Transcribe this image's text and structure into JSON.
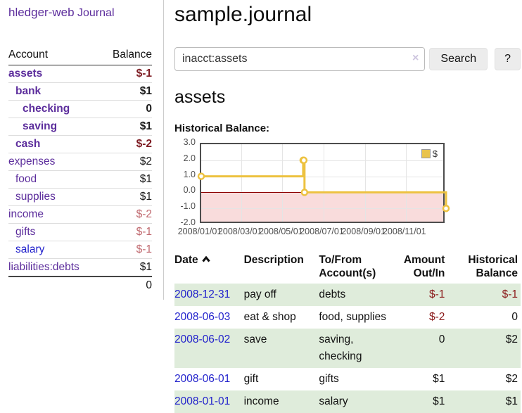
{
  "app": {
    "title": "hledger-web",
    "nav_journal": "Journal"
  },
  "sidebar": {
    "header": {
      "account": "Account",
      "balance": "Balance"
    },
    "accounts": [
      {
        "name": "assets",
        "indent": 1,
        "balance": "$-1",
        "bold": true,
        "neg": "strong"
      },
      {
        "name": "bank",
        "indent": 2,
        "balance": "$1",
        "bold": true,
        "neg": "none"
      },
      {
        "name": "checking",
        "indent": 3,
        "balance": "0",
        "bold": true,
        "neg": "none"
      },
      {
        "name": "saving",
        "indent": 3,
        "balance": "$1",
        "bold": true,
        "neg": "none"
      },
      {
        "name": "cash",
        "indent": 2,
        "balance": "$-2",
        "bold": true,
        "neg": "strong"
      },
      {
        "name": "expenses",
        "indent": 1,
        "balance": "$2",
        "bold": false,
        "neg": "none"
      },
      {
        "name": "food",
        "indent": 2,
        "balance": "$1",
        "bold": false,
        "neg": "none"
      },
      {
        "name": "supplies",
        "indent": 2,
        "balance": "$1",
        "bold": false,
        "neg": "none"
      },
      {
        "name": "income",
        "indent": 1,
        "balance": "$-2",
        "bold": false,
        "neg": "soft"
      },
      {
        "name": "gifts",
        "indent": 2,
        "balance": "$-1",
        "bold": false,
        "neg": "soft"
      },
      {
        "name": "salary",
        "indent": 2,
        "balance": "$-1",
        "bold": false,
        "neg": "soft",
        "link": "blue"
      },
      {
        "name": "liabilities:debts",
        "indent": 1,
        "balance": "$1",
        "bold": false,
        "neg": "none",
        "last": true
      }
    ],
    "total": "0"
  },
  "header": {
    "title": "sample.journal"
  },
  "search": {
    "query": "inacct:assets",
    "clear_icon": "×",
    "button_label": "Search",
    "help_label": "?"
  },
  "account_page": {
    "heading": "assets",
    "chart_label": "Historical Balance:"
  },
  "chart_data": {
    "type": "line",
    "title": "Historical Balance",
    "series": [
      {
        "name": "$",
        "color": "#edc240",
        "points": [
          [
            "2008-01-01",
            1
          ],
          [
            "2008-06-01",
            2
          ],
          [
            "2008-06-02",
            2
          ],
          [
            "2008-06-03",
            0
          ],
          [
            "2008-12-31",
            -1
          ]
        ]
      }
    ],
    "x_range": [
      "2008-01-01",
      "2008-12-31"
    ],
    "x_ticks": [
      "2008/01/01",
      "2008/03/01",
      "2008/05/01",
      "2008/07/01",
      "2008/09/01",
      "2008/11/01"
    ],
    "y_ticks": [
      "3.0",
      "2.0",
      "1.0",
      "0.0",
      "-1.0",
      "-2.0"
    ],
    "ylim": [
      -2,
      3
    ],
    "grid": true,
    "legend": {
      "label": "$",
      "position": "top-right"
    },
    "negative_region_color": "#f9dcdc",
    "zero_line_color": "#8b0000"
  },
  "register": {
    "columns": [
      "Date",
      "Description",
      "To/From Account(s)",
      "Amount Out/In",
      "Historical Balance"
    ],
    "sort_indicator": "up",
    "rows": [
      {
        "date": "2008-12-31",
        "description": "pay off",
        "accounts": "debts",
        "amount": "$-1",
        "amount_neg": true,
        "balance": "$-1",
        "balance_neg": true
      },
      {
        "date": "2008-06-03",
        "description": "eat & shop",
        "accounts": "food, supplies",
        "amount": "$-2",
        "amount_neg": true,
        "balance": "0",
        "balance_neg": false
      },
      {
        "date": "2008-06-02",
        "description": "save",
        "accounts": "saving, checking",
        "amount": "0",
        "amount_neg": false,
        "balance": "$2",
        "balance_neg": false
      },
      {
        "date": "2008-06-01",
        "description": "gift",
        "accounts": "gifts",
        "amount": "$1",
        "amount_neg": false,
        "balance": "$2",
        "balance_neg": false
      },
      {
        "date": "2008-01-01",
        "description": "income",
        "accounts": "salary",
        "amount": "$1",
        "amount_neg": false,
        "balance": "$1",
        "balance_neg": false
      }
    ]
  },
  "colors": {
    "link_purple": "#5c2d9c",
    "link_blue": "#2222cc",
    "negative_strong": "#7d1b22",
    "negative_soft": "#c0696f",
    "negative_table": "#8b1b1b",
    "row_green": "#dfecdb",
    "chart_gold": "#edc240",
    "chart_negative_fill": "#f9dcdc",
    "chart_zero_line": "#8b0000"
  }
}
